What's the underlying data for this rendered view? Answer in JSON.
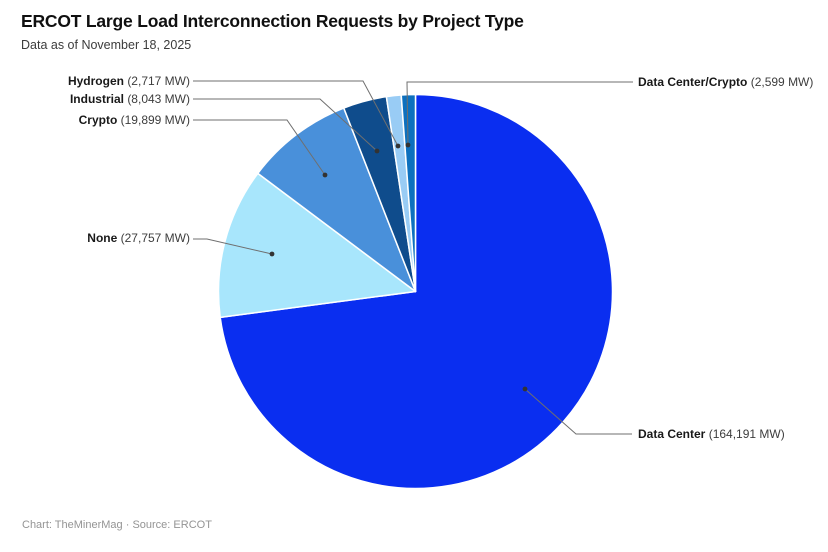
{
  "header": {
    "title": "ERCOT Large Load Interconnection Requests by Project Type",
    "subtitle": "Data as of November 18, 2025"
  },
  "chart_data": {
    "type": "pie",
    "title": "ERCOT Large Load Interconnection Requests by Project Type",
    "subtitle": "Data as of November 18, 2025",
    "unit": "MW",
    "start_angle": "12-oclock",
    "direction": "clockwise",
    "legend_position": "callout-labels",
    "slice_gap_color": "#ffffff",
    "leader_line_color": "#6f6f6f",
    "slices": [
      {
        "label": "Data Center",
        "value": 164191,
        "value_label": "(164,191 MW)",
        "color": "#0a2ef0"
      },
      {
        "label": "None",
        "value": 27757,
        "value_label": "(27,757 MW)",
        "color": "#a8e6fc"
      },
      {
        "label": "Crypto",
        "value": 19899,
        "value_label": "(19,899 MW)",
        "color": "#4990da"
      },
      {
        "label": "Industrial",
        "value": 8043,
        "value_label": "(8,043 MW)",
        "color": "#0f4c8c"
      },
      {
        "label": "Hydrogen",
        "value": 2717,
        "value_label": "(2,717 MW)",
        "color": "#99ccf5"
      },
      {
        "label": "Data Center/Crypto",
        "value": 2599,
        "value_label": "(2,599 MW)",
        "color": "#0d70be"
      }
    ]
  },
  "footer": {
    "credit": "Chart: TheMinerMag · Source: ERCOT"
  }
}
